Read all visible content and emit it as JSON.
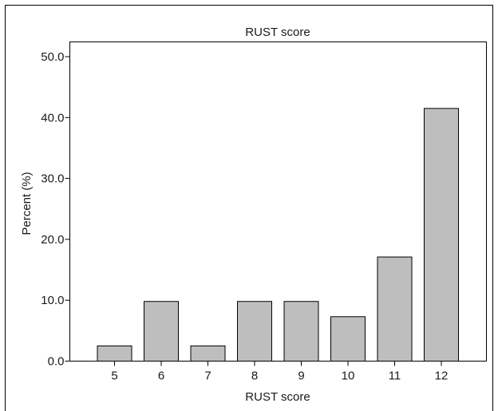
{
  "chart_data": {
    "type": "bar",
    "title": "RUST score",
    "xlabel": "RUST score",
    "ylabel": "Percent (%)",
    "categories": [
      "5",
      "6",
      "7",
      "8",
      "9",
      "10",
      "11",
      "12"
    ],
    "values": [
      2.5,
      9.8,
      2.5,
      9.8,
      9.8,
      7.3,
      17.1,
      41.5
    ],
    "ylim": [
      0,
      50
    ],
    "yticks": [
      "0.0",
      "10.0",
      "20.0",
      "30.0",
      "40.0",
      "50.0"
    ],
    "grid": false,
    "colors": {
      "bar_fill": "#bebebe",
      "bar_stroke": "#000000",
      "frame": "#000000",
      "outer_border": "#000000"
    }
  }
}
